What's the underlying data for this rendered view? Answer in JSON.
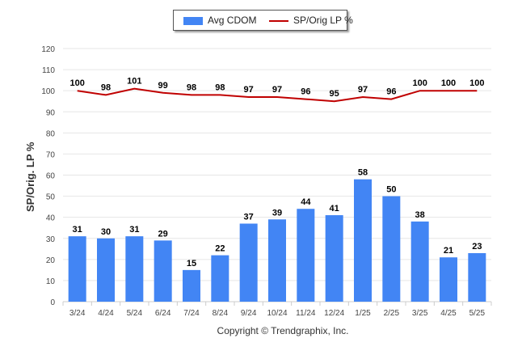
{
  "legend": {
    "bar_label": "Avg CDOM",
    "line_label": "SP/Orig LP %"
  },
  "footer": {
    "copyright": "Copyright © Trendgraphix, Inc."
  },
  "colors": {
    "bar": "#4285f4",
    "line": "#c00000",
    "grid": "#e6e6e6",
    "axis_text": "#444444"
  },
  "chart_data": {
    "type": "bar",
    "title": "",
    "xlabel": "",
    "ylabel": "SP/Orig. LP %",
    "ylim": [
      0,
      120
    ],
    "yticks": [
      0,
      10,
      20,
      30,
      40,
      50,
      60,
      70,
      80,
      90,
      100,
      110,
      120
    ],
    "grid": true,
    "legend_position": "top-center",
    "categories": [
      "3/24",
      "4/24",
      "5/24",
      "6/24",
      "7/24",
      "8/24",
      "9/24",
      "10/24",
      "11/24",
      "12/24",
      "1/25",
      "2/25",
      "3/25",
      "4/25",
      "5/25"
    ],
    "series": [
      {
        "name": "Avg CDOM",
        "type": "bar",
        "values": [
          31,
          30,
          31,
          29,
          15,
          22,
          37,
          39,
          44,
          41,
          58,
          50,
          38,
          21,
          23
        ]
      },
      {
        "name": "SP/Orig LP %",
        "type": "line",
        "values": [
          100,
          98,
          101,
          99,
          98,
          98,
          97,
          97,
          96,
          95,
          97,
          96,
          100,
          100,
          100
        ]
      }
    ]
  }
}
